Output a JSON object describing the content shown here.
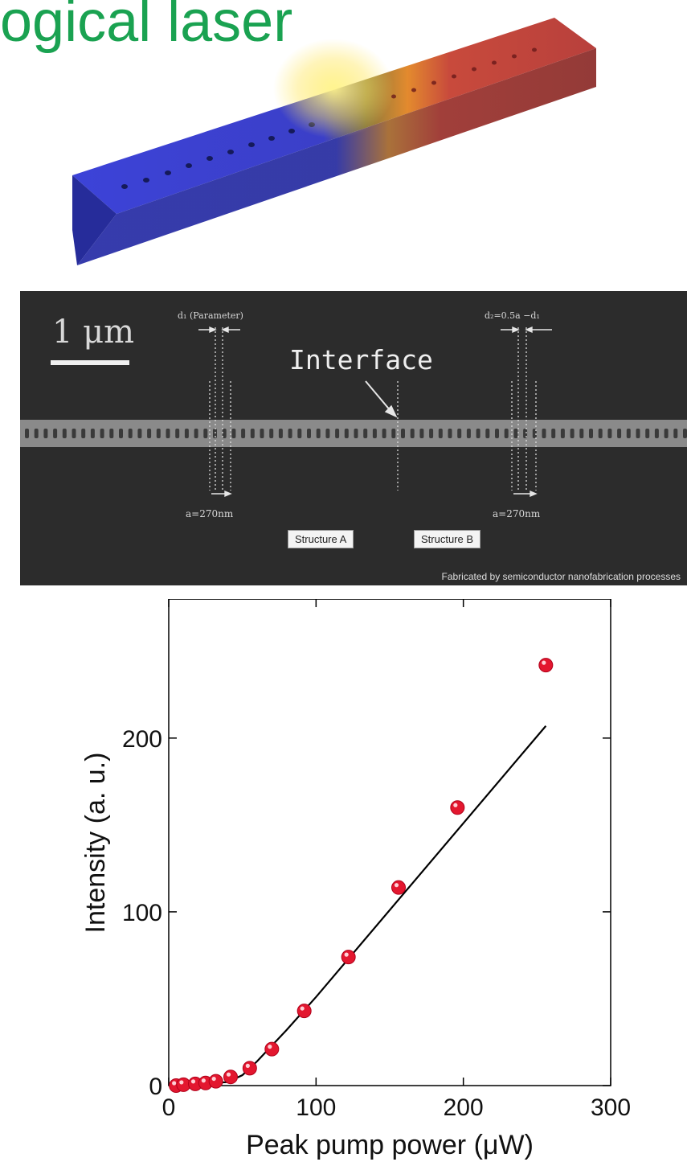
{
  "header": {
    "title": "ogical laser"
  },
  "sem": {
    "scale_bar": "1 μm",
    "d1_label": "d₁ (Parameter)",
    "d2_label": "d₂=0.5a −d₁",
    "interface_label": "Interface",
    "a_left": "a=270nm",
    "a_right": "a=270nm",
    "structure_a": "Structure A",
    "structure_b": "Structure B",
    "caption": "Fabricated by semiconductor nanofabrication processes"
  },
  "colors": {
    "title": "#1aa251",
    "waveguide_blue": "#3a3fd0",
    "waveguide_red": "#c0403a",
    "glow": "#ffe866",
    "marker": "#e3172f",
    "fit_line": "#000000"
  },
  "chart_data": {
    "type": "scatter",
    "xlabel": "Peak pump power (μW)",
    "ylabel": "Intensity (a. u.)",
    "xlim": [
      0,
      300
    ],
    "ylim": [
      0,
      280
    ],
    "xticks": [
      0,
      100,
      200,
      300
    ],
    "yticks": [
      0,
      100,
      200
    ],
    "grid": false,
    "series": [
      {
        "kind": "markers",
        "x": [
          5,
          10,
          18,
          25,
          32,
          42,
          55,
          70,
          92,
          122,
          156,
          196,
          256
        ],
        "y": [
          0,
          0.5,
          1,
          1.5,
          2.5,
          5,
          10,
          21,
          43,
          74,
          114,
          160,
          242
        ]
      },
      {
        "kind": "fit",
        "x": [
          0,
          40,
          50,
          60,
          80,
          100,
          256
        ],
        "y": [
          0,
          2,
          6,
          14,
          32,
          51,
          207
        ]
      }
    ]
  }
}
